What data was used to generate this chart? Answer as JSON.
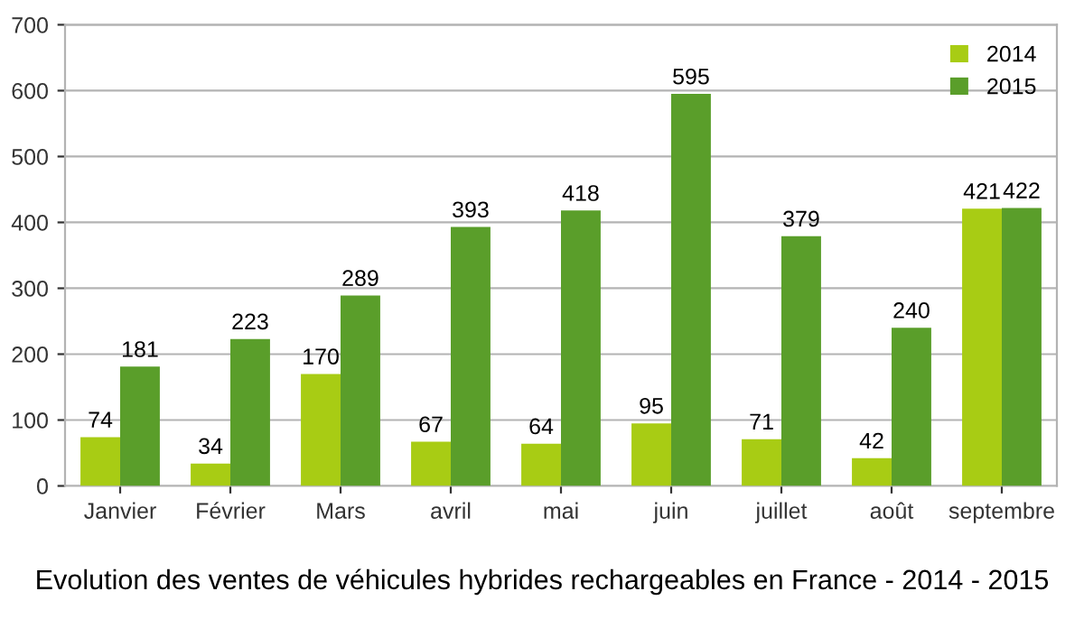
{
  "chart_data": {
    "type": "bar",
    "annotations": [
      "Evolution des ventes de véhicules hybrides rechargeables en France - 2014 - 2015"
    ],
    "categories": [
      "Janvier",
      "Février",
      "Mars",
      "avril",
      "mai",
      "juin",
      "juillet",
      "août",
      "septembre"
    ],
    "series": [
      {
        "name": "2014",
        "color": "#a8cc14",
        "values": [
          74,
          34,
          170,
          67,
          64,
          95,
          71,
          42,
          421
        ]
      },
      {
        "name": "2015",
        "color": "#5a9e2a",
        "values": [
          181,
          223,
          289,
          393,
          418,
          595,
          379,
          240,
          422
        ]
      }
    ],
    "ylim": [
      0,
      700
    ],
    "yticks": [
      0,
      100,
      200,
      300,
      400,
      500,
      600,
      700
    ],
    "grid": "y",
    "legend": "top right",
    "data_labels": true
  }
}
